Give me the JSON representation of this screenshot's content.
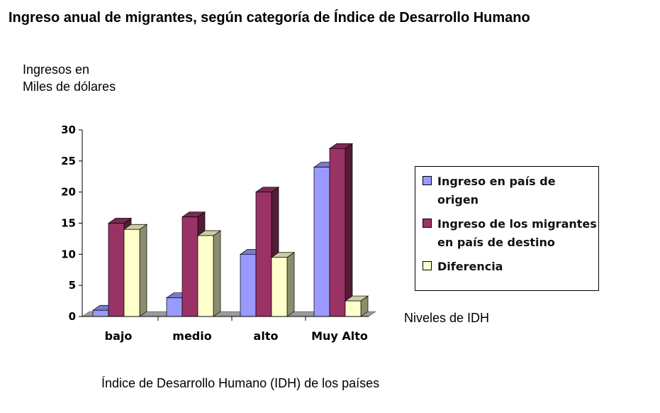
{
  "chart_data": {
    "type": "bar",
    "title": "Ingreso anual de migrantes, según categoría de Índice de Desarrollo Humano",
    "ylabel_line1": "Ingresos en",
    "ylabel_line2": "Miles de dólares",
    "xlabel": "Índice de Desarrollo Humano (IDH) de los países",
    "depth_axis_label": "Niveles de IDH",
    "categories": [
      "bajo",
      "medio",
      "alto",
      "Muy Alto"
    ],
    "ylim": [
      0,
      30
    ],
    "yticks": [
      0,
      5,
      10,
      15,
      20,
      25,
      30
    ],
    "grid": false,
    "legend_position": "right",
    "series": [
      {
        "name": "Ingreso en país de origen",
        "values": [
          1,
          3,
          10,
          24
        ],
        "color": "#9999FF"
      },
      {
        "name": "Ingreso de los migrantes\nen país de destino",
        "values": [
          15,
          16,
          20,
          27
        ],
        "color": "#993366"
      },
      {
        "name": "Diferencia",
        "values": [
          14,
          13,
          9.5,
          2.5
        ],
        "color": "#FFFFCC"
      }
    ]
  }
}
